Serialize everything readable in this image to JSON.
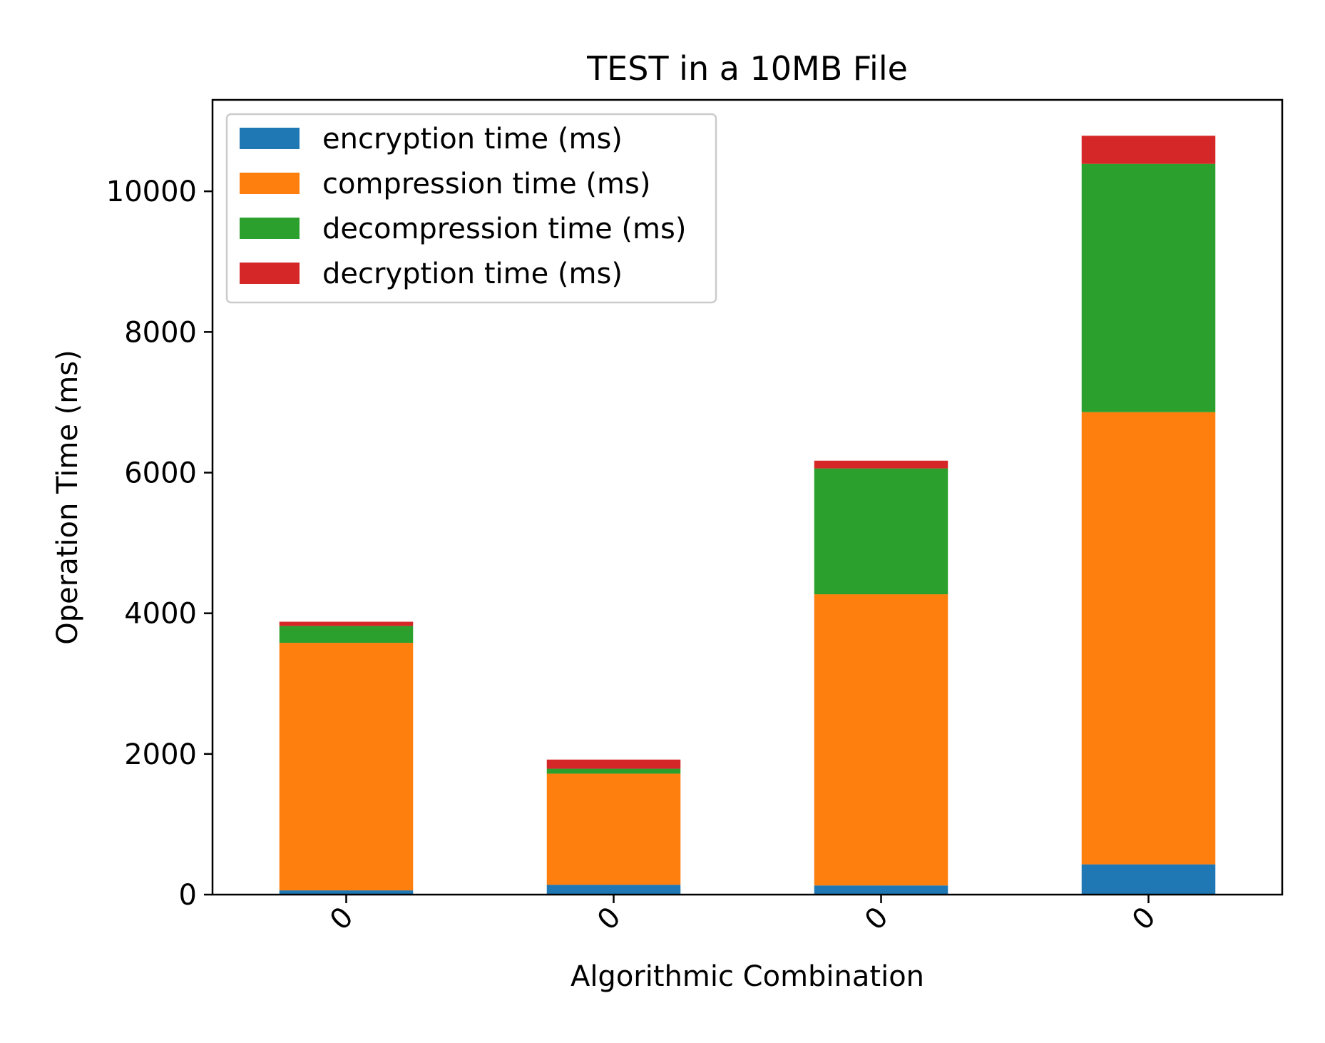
{
  "chart_data": {
    "type": "bar",
    "stacked": true,
    "title": "TEST in a 10MB File",
    "xlabel": "Algorithmic Combination",
    "ylabel": "Operation Time (ms)",
    "categories": [
      "0",
      "0",
      "0",
      "0"
    ],
    "ylim": [
      0,
      11300
    ],
    "yticks": [
      0,
      2000,
      4000,
      6000,
      8000,
      10000
    ],
    "grid": false,
    "legend_position": "top-left",
    "series": [
      {
        "name": "encryption time (ms)",
        "color": "#1f77b4",
        "values": [
          60,
          140,
          130,
          430
        ]
      },
      {
        "name": "compression time (ms)",
        "color": "#ff7f0e",
        "values": [
          3520,
          1580,
          4140,
          6430
        ]
      },
      {
        "name": "decompression time (ms)",
        "color": "#2ca02c",
        "values": [
          240,
          70,
          1790,
          3530
        ]
      },
      {
        "name": "decryption time (ms)",
        "color": "#d62728",
        "values": [
          60,
          130,
          110,
          400
        ]
      }
    ]
  }
}
